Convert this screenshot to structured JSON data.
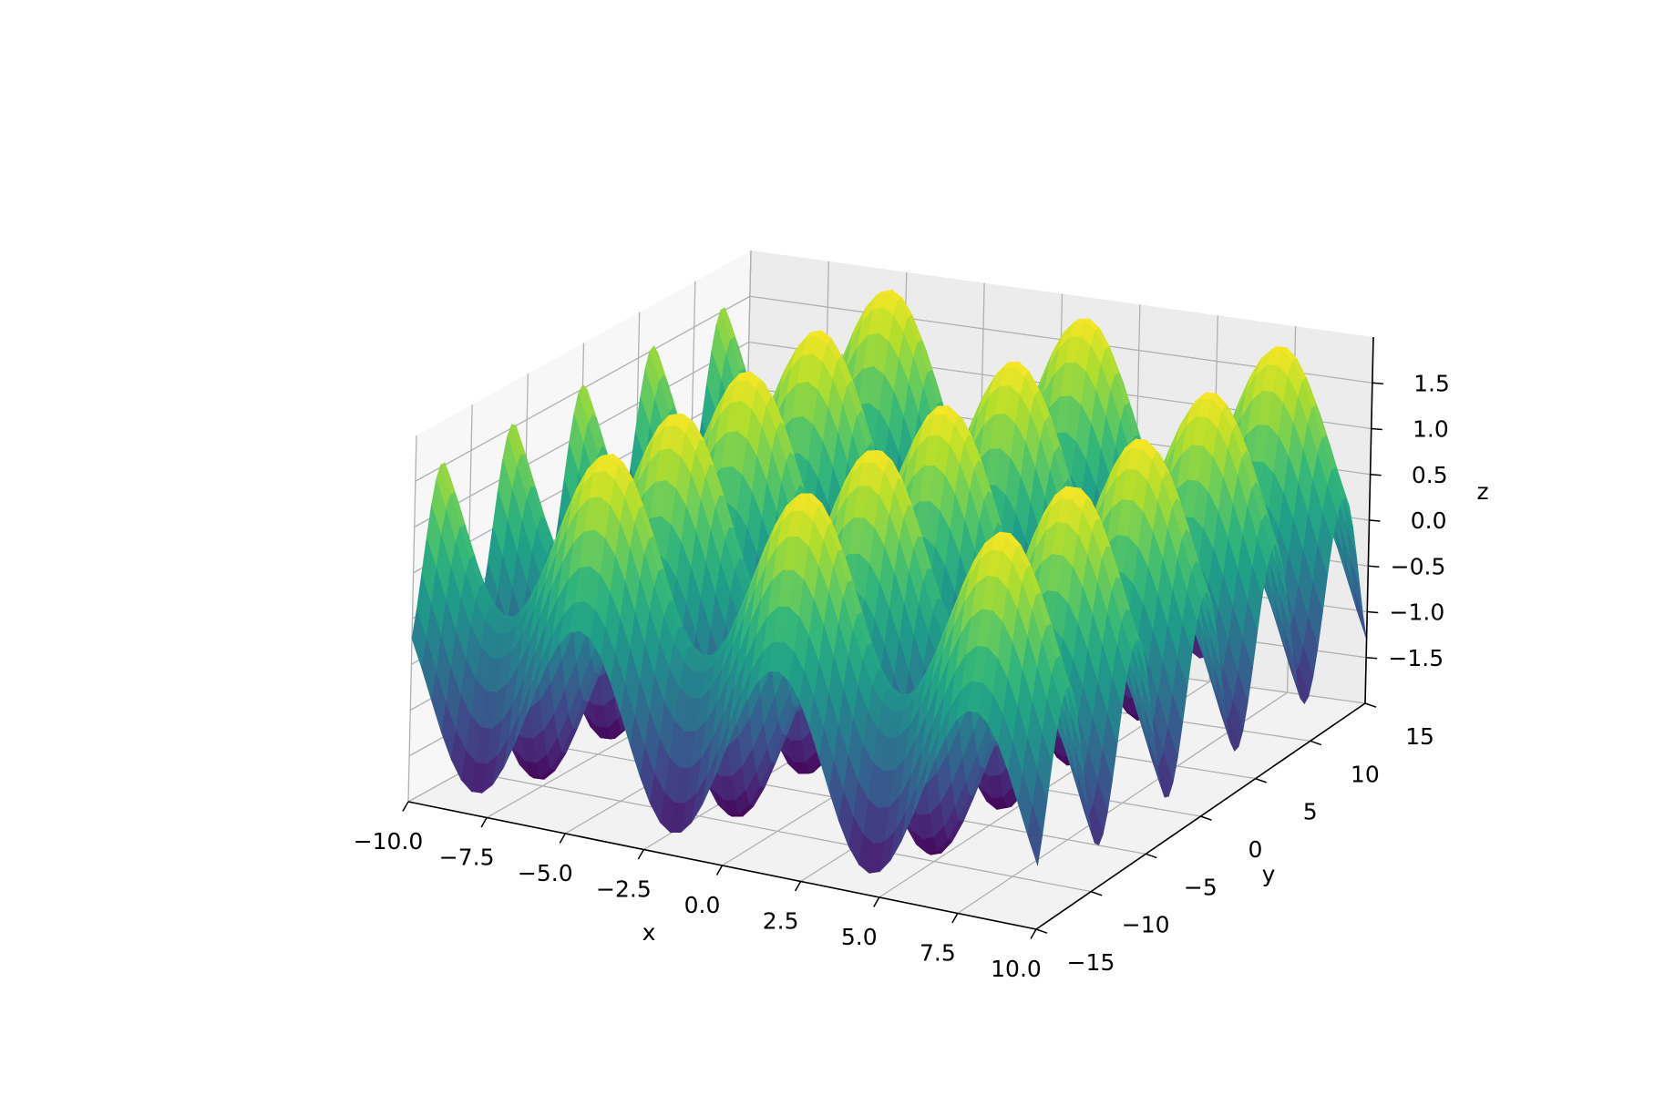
{
  "chart_data": {
    "type": "surface3d",
    "function": "z = sin(x) + cos(y)",
    "colormap": "viridis",
    "grid": true,
    "x": {
      "label": "x",
      "range": [
        -10,
        10
      ],
      "ticks": [
        -10.0,
        -7.5,
        -5.0,
        -2.5,
        0.0,
        2.5,
        5.0,
        7.5,
        10.0
      ],
      "tick_labels": [
        "−10.0",
        "−7.5",
        "−5.0",
        "−2.5",
        "0.0",
        "2.5",
        "5.0",
        "7.5",
        "10.0"
      ]
    },
    "y": {
      "label": "y",
      "range": [
        -15,
        15
      ],
      "ticks": [
        -15,
        -10,
        -5,
        0,
        5,
        10,
        15
      ],
      "tick_labels": [
        "−15",
        "−10",
        "−5",
        "0",
        "5",
        "10",
        "15"
      ]
    },
    "z": {
      "label": "z",
      "range": [
        -2,
        2
      ],
      "ticks": [
        -1.5,
        -1.0,
        -0.5,
        0.0,
        0.5,
        1.0,
        1.5
      ],
      "tick_labels": [
        "−1.5",
        "−1.0",
        "−0.5",
        "0.0",
        "0.5",
        "1.0",
        "1.5"
      ]
    }
  },
  "colors": {
    "pane_floor": "#f2f2f2",
    "pane_left": "#f7f7f7",
    "pane_back": "#ececec",
    "grid": "#b0b0b0",
    "axis": "#000000"
  }
}
